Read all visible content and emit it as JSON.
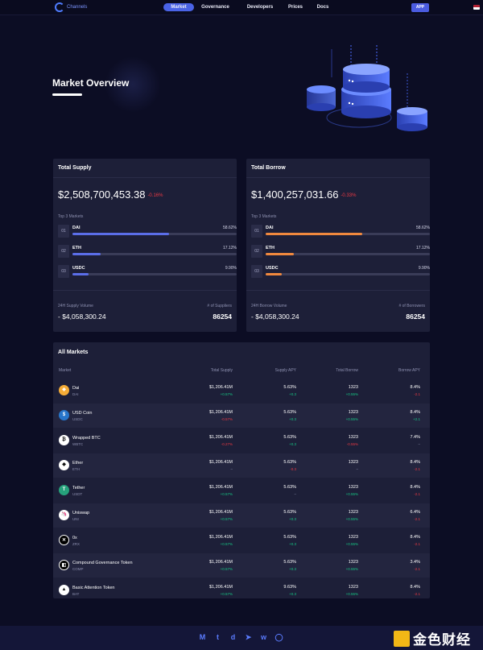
{
  "nav": {
    "brand": "Channels",
    "items": [
      "Market",
      "Governance",
      "Developers",
      "Prices",
      "Docs"
    ],
    "app": "APP"
  },
  "hero": {
    "title": "Market Overview"
  },
  "supply": {
    "title": "Total Supply",
    "amount": "$2,508,700,453.38",
    "change": "-0.16%",
    "top_label": "Top 3 Markets",
    "markets": [
      {
        "idx": "01",
        "name": "DAI",
        "pct": "58.62%",
        "fill": 0.5862
      },
      {
        "idx": "02",
        "name": "ETH",
        "pct": "17.12%",
        "fill": 0.1712
      },
      {
        "idx": "03",
        "name": "USDC",
        "pct": "9.90%",
        "fill": 0.099
      }
    ],
    "vol_label": "24H Supply Volume",
    "vol": "- $4,058,300.24",
    "count_label": "# of Suppliers",
    "count": "86254",
    "bar_color": "#5b6ee8"
  },
  "borrow": {
    "title": "Total Borrow",
    "amount": "$1,400,257,031.66",
    "change": "-0.33%",
    "top_label": "Top 3 Markets",
    "markets": [
      {
        "idx": "01",
        "name": "DAI",
        "pct": "58.62%",
        "fill": 0.5862
      },
      {
        "idx": "02",
        "name": "ETH",
        "pct": "17.12%",
        "fill": 0.1712
      },
      {
        "idx": "03",
        "name": "USDC",
        "pct": "9.90%",
        "fill": 0.099
      }
    ],
    "vol_label": "24H Borrow Volume",
    "vol": "- $4,058,300.24",
    "count_label": "# of Borrowers",
    "count": "86254",
    "bar_color": "#f0883e"
  },
  "table": {
    "title": "All Markets",
    "headers": [
      "Market",
      "Total Supply",
      "Supply APY",
      "Total Borrow",
      "Borrow APY"
    ],
    "rows": [
      {
        "name": "Dai",
        "sym": "DAI",
        "icon": "dai-icon",
        "color": "#f5ac37",
        "glyph": "◈",
        "ts": "$1,206.41M",
        "tsc": "+0.57%",
        "tscc": "green",
        "sa": "5.63%",
        "sac": "+0.3",
        "sacc": "green",
        "tb": "1323",
        "tbc": "+0.55%",
        "tbcc": "green",
        "ba": "8.4%",
        "bac": "-2.1",
        "bacc": "red"
      },
      {
        "name": "USD Coin",
        "sym": "USDC",
        "icon": "usdc-icon",
        "color": "#2775ca",
        "glyph": "$",
        "ts": "$1,206.41M",
        "tsc": "-0.57%",
        "tscc": "red",
        "sa": "5.63%",
        "sac": "+0.3",
        "sacc": "green",
        "tb": "1323",
        "tbc": "+0.55%",
        "tbcc": "green",
        "ba": "8.4%",
        "bac": "+2.1",
        "bacc": "green"
      },
      {
        "name": "Wrapped BTC",
        "sym": "WBTC",
        "icon": "wbtc-icon",
        "color": "#ffffff",
        "glyph": "₿",
        "ts": "$1,206.41M",
        "tsc": "-0.27%",
        "tscc": "red",
        "sa": "5.63%",
        "sac": "+0.3",
        "sacc": "green",
        "tb": "1323",
        "tbc": "-0.55%",
        "tbcc": "red",
        "ba": "7.4%",
        "bac": "–",
        "bacc": "gray"
      },
      {
        "name": "Ether",
        "sym": "ETH",
        "icon": "eth-icon",
        "color": "#ffffff",
        "glyph": "◆",
        "ts": "$1,206.41M",
        "tsc": "–",
        "tscc": "gray",
        "sa": "5.63%",
        "sac": "-0.3",
        "sacc": "red",
        "tb": "1323",
        "tbc": "–",
        "tbcc": "gray",
        "ba": "8.4%",
        "bac": "-2.1",
        "bacc": "red"
      },
      {
        "name": "Tether",
        "sym": "USDT",
        "icon": "usdt-icon",
        "color": "#26a17b",
        "glyph": "T",
        "ts": "$1,206.41M",
        "tsc": "+0.57%",
        "tscc": "green",
        "sa": "5.63%",
        "sac": "–",
        "sacc": "gray",
        "tb": "1323",
        "tbc": "+0.55%",
        "tbcc": "green",
        "ba": "8.4%",
        "bac": "-2.1",
        "bacc": "red"
      },
      {
        "name": "Uniswap",
        "sym": "UNI",
        "icon": "uni-icon",
        "color": "#ffffff",
        "glyph": "🦄",
        "ts": "$1,206.41M",
        "tsc": "+0.57%",
        "tscc": "green",
        "sa": "5.63%",
        "sac": "+0.3",
        "sacc": "green",
        "tb": "1323",
        "tbc": "+0.55%",
        "tbcc": "green",
        "ba": "6.4%",
        "bac": "-2.1",
        "bacc": "red"
      },
      {
        "name": "0x",
        "sym": "ZRX",
        "icon": "zrx-icon",
        "color": "#000000",
        "glyph": "✕",
        "ts": "$1,206.41M",
        "tsc": "+0.57%",
        "tscc": "green",
        "sa": "5.63%",
        "sac": "+0.3",
        "sacc": "green",
        "tb": "1323",
        "tbc": "+0.55%",
        "tbcc": "green",
        "ba": "8.4%",
        "bac": "-2.1",
        "bacc": "red"
      },
      {
        "name": "Compound Governance Token",
        "sym": "COMP",
        "icon": "comp-icon",
        "color": "#000000",
        "glyph": "◧",
        "ts": "$1,206.41M",
        "tsc": "+0.57%",
        "tscc": "green",
        "sa": "5.63%",
        "sac": "+0.3",
        "sacc": "green",
        "tb": "1323",
        "tbc": "+0.55%",
        "tbcc": "green",
        "ba": "3.4%",
        "bac": "-2.1",
        "bacc": "red"
      },
      {
        "name": "Basic Attention Token",
        "sym": "BAT",
        "icon": "bat-icon",
        "color": "#ffffff",
        "glyph": "▲",
        "ts": "$1,206.41M",
        "tsc": "+0.57%",
        "tscc": "green",
        "sa": "9.63%",
        "sac": "+0.3",
        "sacc": "green",
        "tb": "1323",
        "tbc": "+0.55%",
        "tbcc": "green",
        "ba": "8.4%",
        "bac": "-2.1",
        "bacc": "red"
      }
    ]
  },
  "footer": {
    "social": [
      "M",
      "t",
      "d",
      "➤",
      "w",
      "◯"
    ]
  },
  "watermark": {
    "text": "金色财经"
  }
}
